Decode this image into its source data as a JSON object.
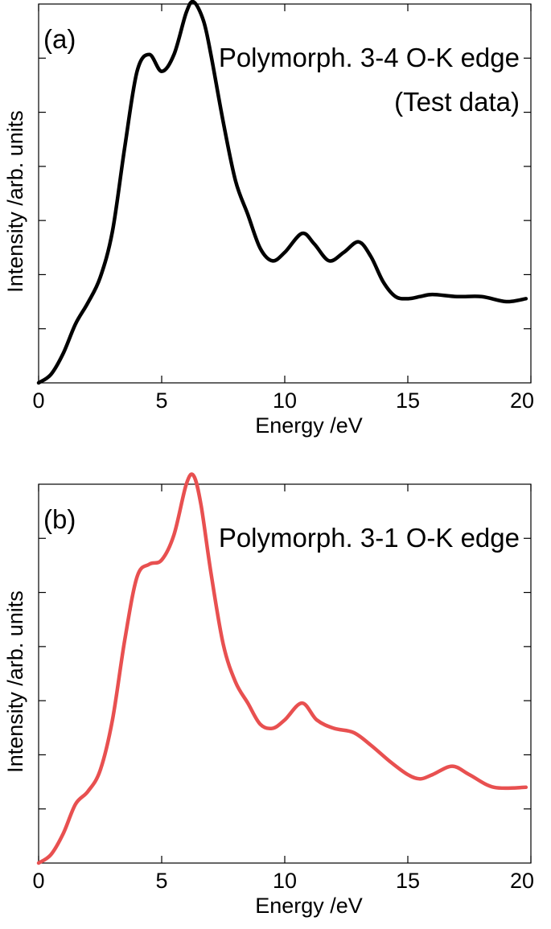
{
  "chart_data": [
    {
      "type": "line",
      "panel_label": "(a)",
      "title": "Polymorph. 3-4 O-K edge",
      "subtitle": "(Test data)",
      "xlabel": "Energy /eV",
      "ylabel": "Intensity /arb. units",
      "xlim": [
        0,
        20
      ],
      "ylim": [
        0,
        0.9
      ],
      "xticks": [
        0,
        5,
        10,
        15,
        20
      ],
      "yticks_labeled": false,
      "grid": false,
      "legend": "none",
      "series": [
        {
          "color": "#000000",
          "x": [
            0,
            0.5,
            1.0,
            1.5,
            2.0,
            2.5,
            3.0,
            3.5,
            4.0,
            4.5,
            5.0,
            5.5,
            6.0,
            6.3,
            6.7,
            7.0,
            7.5,
            8.0,
            8.5,
            9.0,
            9.5,
            10.0,
            10.7,
            11.2,
            11.8,
            12.4,
            13.0,
            13.5,
            14.0,
            14.5,
            15.0,
            15.5,
            16.0,
            17.0,
            18.0,
            19.0,
            19.8
          ],
          "y": [
            0.0,
            0.02,
            0.07,
            0.14,
            0.19,
            0.25,
            0.36,
            0.56,
            0.74,
            0.78,
            0.74,
            0.78,
            0.88,
            0.905,
            0.86,
            0.78,
            0.62,
            0.48,
            0.4,
            0.32,
            0.29,
            0.31,
            0.355,
            0.33,
            0.29,
            0.31,
            0.335,
            0.3,
            0.24,
            0.205,
            0.2,
            0.205,
            0.21,
            0.205,
            0.205,
            0.193,
            0.2
          ]
        }
      ]
    },
    {
      "type": "line",
      "panel_label": "(b)",
      "title": "Polymorph. 3-1 O-K edge",
      "subtitle": "",
      "xlabel": "Energy /eV",
      "ylabel": "Intensity /arb. units",
      "xlim": [
        0,
        20
      ],
      "ylim": [
        0,
        0.9
      ],
      "xticks": [
        0,
        5,
        10,
        15,
        20
      ],
      "yticks_labeled": false,
      "grid": false,
      "legend": "none",
      "series": [
        {
          "color": "#e85050",
          "x": [
            0,
            0.5,
            1.0,
            1.5,
            2.0,
            2.5,
            3.0,
            3.5,
            4.0,
            4.5,
            5.0,
            5.5,
            6.0,
            6.3,
            6.6,
            7.0,
            7.5,
            8.0,
            8.5,
            9.0,
            9.5,
            10.0,
            10.7,
            11.3,
            12.0,
            12.8,
            13.5,
            14.3,
            15.0,
            15.5,
            16.0,
            16.8,
            17.5,
            18.5,
            19.8
          ],
          "y": [
            0.0,
            0.02,
            0.07,
            0.14,
            0.17,
            0.22,
            0.34,
            0.53,
            0.68,
            0.71,
            0.72,
            0.78,
            0.9,
            0.92,
            0.85,
            0.69,
            0.52,
            0.43,
            0.38,
            0.33,
            0.32,
            0.34,
            0.38,
            0.34,
            0.32,
            0.31,
            0.28,
            0.24,
            0.21,
            0.2,
            0.21,
            0.23,
            0.21,
            0.18,
            0.18
          ]
        }
      ]
    }
  ]
}
